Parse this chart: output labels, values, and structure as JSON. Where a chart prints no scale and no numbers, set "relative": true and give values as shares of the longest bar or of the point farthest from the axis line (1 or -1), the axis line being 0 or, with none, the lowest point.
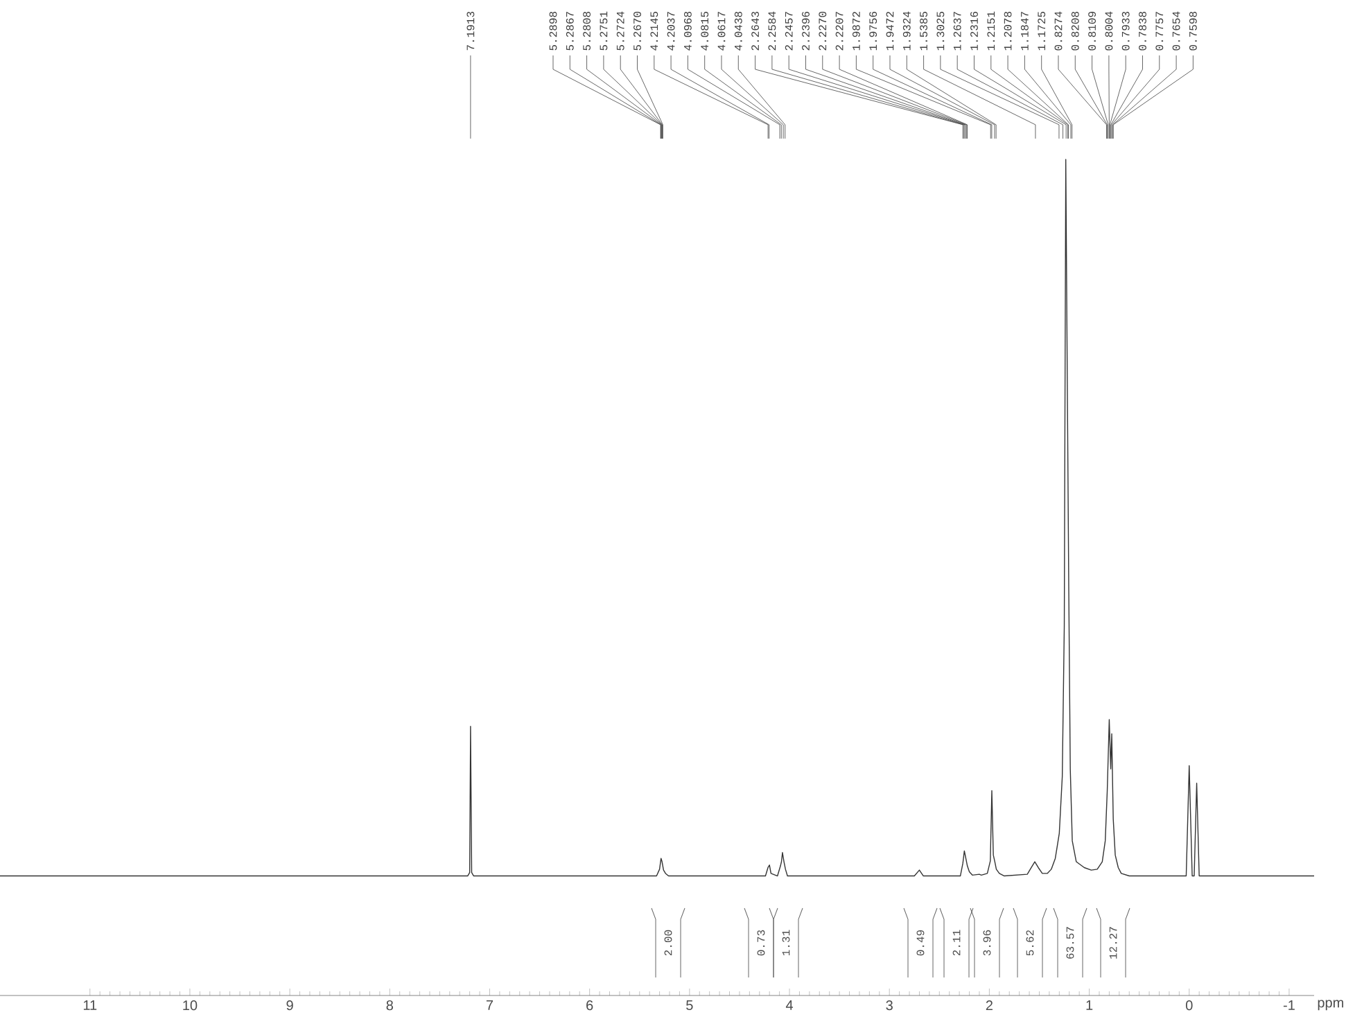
{
  "chart_data": {
    "type": "line",
    "relative": true,
    "xlabel": "ppm",
    "color": "#333333",
    "xlim": [
      11.9,
      -1.25
    ],
    "xticks": [
      11,
      10,
      9,
      8,
      7,
      6,
      5,
      4,
      3,
      2,
      1,
      0,
      -1
    ],
    "x": [
      11.9,
      7.22,
      7.2,
      7.1913,
      7.18,
      7.16,
      5.33,
      5.3,
      5.285,
      5.275,
      5.26,
      5.24,
      5.21,
      4.24,
      4.215,
      4.2,
      4.185,
      4.12,
      4.09,
      4.08,
      4.07,
      4.055,
      4.04,
      4.02,
      2.75,
      2.7,
      2.66,
      2.29,
      2.265,
      2.25,
      2.235,
      2.22,
      2.2,
      2.17,
      2.1,
      2.08,
      2.02,
      1.99,
      1.975,
      1.96,
      1.945,
      1.93,
      1.9,
      1.85,
      1.62,
      1.58,
      1.545,
      1.51,
      1.47,
      1.42,
      1.38,
      1.34,
      1.3,
      1.27,
      1.25,
      1.235,
      1.22,
      1.205,
      1.19,
      1.17,
      1.13,
      1.05,
      0.98,
      0.92,
      0.87,
      0.84,
      0.82,
      0.8,
      0.785,
      0.775,
      0.76,
      0.74,
      0.71,
      0.68,
      0.6,
      0.03,
      0.0,
      -0.03,
      -0.05,
      -0.075,
      -0.1,
      -1.25
    ],
    "values": [
      0.143,
      0.143,
      0.147,
      0.322,
      0.147,
      0.143,
      0.143,
      0.151,
      0.164,
      0.16,
      0.15,
      0.146,
      0.143,
      0.143,
      0.153,
      0.156,
      0.146,
      0.143,
      0.155,
      0.16,
      0.171,
      0.16,
      0.151,
      0.143,
      0.143,
      0.15,
      0.143,
      0.143,
      0.158,
      0.173,
      0.164,
      0.155,
      0.148,
      0.144,
      0.145,
      0.144,
      0.146,
      0.161,
      0.245,
      0.168,
      0.16,
      0.151,
      0.146,
      0.143,
      0.145,
      0.153,
      0.16,
      0.153,
      0.146,
      0.146,
      0.151,
      0.164,
      0.194,
      0.262,
      0.442,
      1,
      0.74,
      0.484,
      0.271,
      0.185,
      0.16,
      0.153,
      0.15,
      0.151,
      0.16,
      0.185,
      0.245,
      0.33,
      0.271,
      0.313,
      0.211,
      0.168,
      0.153,
      0.146,
      0.143,
      0.143,
      0.275,
      0.143,
      0.143,
      0.254,
      0.143,
      0.143
    ],
    "annotations": [
      {
        "text": "7.1913",
        "x": 7.1913
      },
      {
        "text": "5.2898",
        "x": 5.2898
      },
      {
        "text": "5.2867",
        "x": 5.2867
      },
      {
        "text": "5.2808",
        "x": 5.2808
      },
      {
        "text": "5.2751",
        "x": 5.2751
      },
      {
        "text": "5.2724",
        "x": 5.2724
      },
      {
        "text": "5.2670",
        "x": 5.267
      },
      {
        "text": "4.2145",
        "x": 4.2145
      },
      {
        "text": "4.2037",
        "x": 4.2037
      },
      {
        "text": "4.0968",
        "x": 4.0968
      },
      {
        "text": "4.0815",
        "x": 4.0815
      },
      {
        "text": "4.0617",
        "x": 4.0617
      },
      {
        "text": "4.0438",
        "x": 4.0438
      },
      {
        "text": "2.2643",
        "x": 2.2643
      },
      {
        "text": "2.2584",
        "x": 2.2584
      },
      {
        "text": "2.2457",
        "x": 2.2457
      },
      {
        "text": "2.2396",
        "x": 2.2396
      },
      {
        "text": "2.2270",
        "x": 2.227
      },
      {
        "text": "2.2207",
        "x": 2.2207
      },
      {
        "text": "1.9872",
        "x": 1.9872
      },
      {
        "text": "1.9756",
        "x": 1.9756
      },
      {
        "text": "1.9472",
        "x": 1.9472
      },
      {
        "text": "1.9324",
        "x": 1.9324
      },
      {
        "text": "1.5385",
        "x": 1.5385
      },
      {
        "text": "1.3025",
        "x": 1.3025
      },
      {
        "text": "1.2637",
        "x": 1.2637
      },
      {
        "text": "1.2316",
        "x": 1.2316
      },
      {
        "text": "1.2151",
        "x": 1.2151
      },
      {
        "text": "1.2078",
        "x": 1.2078
      },
      {
        "text": "1.1847",
        "x": 1.1847
      },
      {
        "text": "1.1725",
        "x": 1.1725
      },
      {
        "text": "0.8274",
        "x": 0.8274
      },
      {
        "text": "0.8208",
        "x": 0.8208
      },
      {
        "text": "0.8109",
        "x": 0.8109
      },
      {
        "text": "0.8004",
        "x": 0.8004
      },
      {
        "text": "0.7933",
        "x": 0.7933
      },
      {
        "text": "0.7838",
        "x": 0.7838
      },
      {
        "text": "0.7757",
        "x": 0.7757
      },
      {
        "text": "0.7654",
        "x": 0.7654
      },
      {
        "text": "0.7598",
        "x": 0.7598
      },
      "2.00",
      "0.73",
      "1.31",
      "0.49",
      "2.11",
      "3.96",
      "5.62",
      "63.57",
      "12.27"
    ]
  }
}
